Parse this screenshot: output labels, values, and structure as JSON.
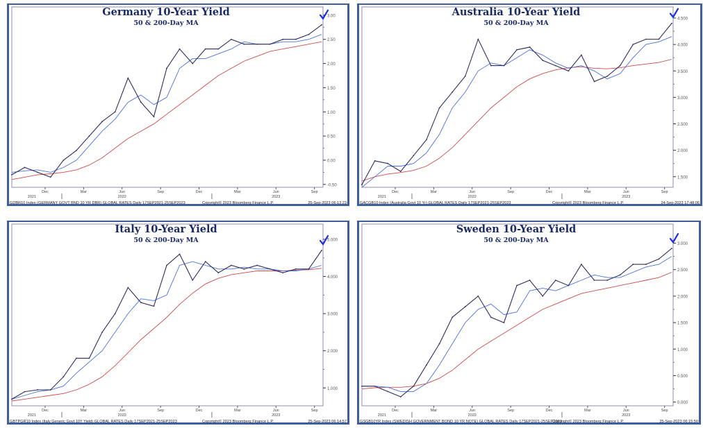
{
  "chart_data": [
    {
      "type": "line",
      "title": "Germany 10-Year Yield",
      "subtitle": "50 & 200-Day MA",
      "footer_left": "GDBR10 Index (GERMANY GOVT BND 10 YR DBR) GLOBAL RATES  Daily 17SEP2021-25SEP2023",
      "footer_mid": "Copyright© 2023 Bloomberg Finance L.P.",
      "footer_right": "25-Sep-2023 06:13:23",
      "ylim": [
        -0.56,
        3.17
      ],
      "yticks": [
        "3.00",
        "2.50",
        "2.00",
        "1.50",
        "1.00",
        "0.50",
        "0.00",
        "-0.50"
      ],
      "ytick_values": [
        3.0,
        2.5,
        2.0,
        1.5,
        1.0,
        0.5,
        0.0,
        -0.5
      ],
      "xticks": [
        "Dec",
        "Mar",
        "Jun",
        "Sep",
        "Dec",
        "Mar",
        "Jun",
        "Sep"
      ],
      "years": [
        "2021",
        "2022",
        "2023"
      ],
      "series": [
        {
          "name": "Yield",
          "color": "#2e2e5e",
          "values": [
            -0.3,
            -0.15,
            -0.25,
            -0.35,
            0.0,
            0.2,
            0.5,
            0.8,
            1.0,
            1.7,
            1.2,
            0.9,
            1.9,
            2.3,
            2.0,
            2.3,
            2.3,
            2.5,
            2.4,
            2.4,
            2.4,
            2.5,
            2.5,
            2.6,
            2.8
          ]
        },
        {
          "name": "50-Day MA",
          "color": "#4a6fe0",
          "values": [
            -0.25,
            -0.22,
            -0.2,
            -0.25,
            -0.15,
            0.0,
            0.3,
            0.6,
            0.85,
            1.2,
            1.35,
            1.15,
            1.3,
            1.9,
            2.1,
            2.1,
            2.2,
            2.3,
            2.45,
            2.4,
            2.4,
            2.45,
            2.45,
            2.5,
            2.6
          ]
        },
        {
          "name": "200-Day MA",
          "color": "#d04a4a",
          "values": [
            -0.4,
            -0.35,
            -0.3,
            -0.28,
            -0.25,
            -0.2,
            -0.1,
            0.05,
            0.25,
            0.45,
            0.6,
            0.75,
            0.95,
            1.15,
            1.35,
            1.55,
            1.75,
            1.9,
            2.05,
            2.15,
            2.25,
            2.3,
            2.35,
            2.4,
            2.45
          ]
        }
      ]
    },
    {
      "type": "line",
      "title": "Australia 10-Year Yield",
      "subtitle": "50 & 200-Day MA",
      "footer_left": "GACGB10 Index (Australia Govt 10 Yr) GLOBAL RATES  Daily 17SEP2021-25SEP2023",
      "footer_mid": "Copyright© 2023 Bloomberg Finance L.P.",
      "footer_right": "24-Sep-2023 17:48:06",
      "ylim": [
        1.3,
        4.71
      ],
      "yticks": [
        "4.500",
        "4.000",
        "3.500",
        "3.000",
        "2.500",
        "2.000",
        "1.500"
      ],
      "ytick_values": [
        4.5,
        4.0,
        3.5,
        3.0,
        2.5,
        2.0,
        1.5
      ],
      "xticks": [
        "Dec",
        "Mar",
        "Jun",
        "Sep",
        "Dec",
        "Mar",
        "Jun",
        "Sep"
      ],
      "years": [
        "2021",
        "2022",
        "2023"
      ],
      "series": [
        {
          "name": "Yield",
          "color": "#2e2e5e",
          "values": [
            1.35,
            1.8,
            1.75,
            1.6,
            1.9,
            2.2,
            2.8,
            3.1,
            3.4,
            4.1,
            3.6,
            3.6,
            3.9,
            3.95,
            3.7,
            3.6,
            3.5,
            3.8,
            3.3,
            3.4,
            3.6,
            4.0,
            4.1,
            4.1,
            4.4
          ]
        },
        {
          "name": "50-Day MA",
          "color": "#4a6fe0",
          "values": [
            1.3,
            1.5,
            1.7,
            1.7,
            1.75,
            1.95,
            2.3,
            2.8,
            3.1,
            3.5,
            3.65,
            3.6,
            3.75,
            3.9,
            3.8,
            3.65,
            3.55,
            3.6,
            3.5,
            3.35,
            3.45,
            3.75,
            4.0,
            4.05,
            4.15
          ]
        },
        {
          "name": "200-Day MA",
          "color": "#d04a4a",
          "values": [
            1.42,
            1.5,
            1.55,
            1.58,
            1.62,
            1.7,
            1.85,
            2.05,
            2.3,
            2.55,
            2.8,
            3.0,
            3.2,
            3.35,
            3.45,
            3.52,
            3.56,
            3.58,
            3.55,
            3.54,
            3.56,
            3.6,
            3.63,
            3.66,
            3.72
          ]
        }
      ]
    },
    {
      "type": "line",
      "title": "Italy 10-Year Yield",
      "subtitle": "50 & 200-Day MA",
      "footer_left": "GBTPGR10 Index (Italy Generic Govt 10Y Yield) GLOBAL RATES  Daily 17SEP2021-25SEP2023",
      "footer_mid": "Copyright© 2023 Bloomberg Finance L.P.",
      "footer_right": "25-Sep-2023 06:14:57",
      "ylim": [
        0.52,
        5.41
      ],
      "yticks": [
        "5.000",
        "4.000",
        "3.000",
        "2.000",
        "1.000"
      ],
      "ytick_values": [
        5,
        4,
        3,
        2,
        1
      ],
      "xticks": [
        "Dec",
        "Mar",
        "Jun",
        "Sep",
        "Dec",
        "Mar",
        "Jun",
        "Sep"
      ],
      "years": [
        "2021",
        "2022",
        "2023"
      ],
      "series": [
        {
          "name": "Yield",
          "color": "#2e2e5e",
          "values": [
            0.7,
            0.9,
            0.95,
            0.95,
            1.3,
            1.8,
            1.8,
            2.5,
            3.0,
            3.7,
            3.3,
            3.2,
            4.3,
            4.6,
            3.9,
            4.4,
            4.1,
            4.3,
            4.2,
            4.3,
            4.2,
            4.1,
            4.2,
            4.2,
            4.7
          ]
        },
        {
          "name": "50-Day MA",
          "color": "#4a6fe0",
          "values": [
            0.7,
            0.8,
            0.9,
            0.95,
            1.05,
            1.4,
            1.7,
            2.0,
            2.5,
            3.0,
            3.4,
            3.35,
            3.5,
            4.3,
            4.4,
            4.3,
            4.2,
            4.2,
            4.25,
            4.2,
            4.2,
            4.15,
            4.15,
            4.2,
            4.3
          ]
        },
        {
          "name": "200-Day MA",
          "color": "#d04a4a",
          "values": [
            0.65,
            0.7,
            0.75,
            0.8,
            0.85,
            0.95,
            1.1,
            1.3,
            1.6,
            1.95,
            2.3,
            2.6,
            2.9,
            3.25,
            3.55,
            3.8,
            3.95,
            4.05,
            4.1,
            4.15,
            4.15,
            4.15,
            4.17,
            4.18,
            4.22
          ]
        }
      ]
    },
    {
      "type": "line",
      "title": "Sweden 10-Year Yield",
      "subtitle": "50 & 200-Day MA",
      "footer_left": "GSGB10YR Index (SWEDISH GOVERNMENT BOND 10 YR NOTE) GLOBAL RATES  Daily 17SEP2021-25SEP2023",
      "footer_mid": "Copyright© 2023 Bloomberg Finance L.P.",
      "footer_right": "25-Sep-2023 06:15:50",
      "ylim": [
        -0.07,
        3.36
      ],
      "yticks": [
        "3.000",
        "2.500",
        "2.000",
        "1.500",
        "1.000",
        "0.500",
        "0.000"
      ],
      "ytick_values": [
        3.0,
        2.5,
        2.0,
        1.5,
        1.0,
        0.5,
        0.0
      ],
      "xticks": [
        "Dec",
        "Mar",
        "Jun",
        "Sep",
        "Dec",
        "Mar",
        "Jun",
        "Sep"
      ],
      "years": [
        "2021",
        "2022",
        "2023"
      ],
      "series": [
        {
          "name": "Yield",
          "color": "#2e2e5e",
          "values": [
            0.3,
            0.3,
            0.2,
            0.1,
            0.3,
            0.7,
            1.1,
            1.6,
            1.8,
            2.0,
            1.6,
            1.5,
            2.2,
            2.3,
            2.0,
            2.3,
            2.2,
            2.6,
            2.3,
            2.3,
            2.4,
            2.6,
            2.6,
            2.7,
            2.9
          ]
        },
        {
          "name": "50-Day MA",
          "color": "#4a6fe0",
          "values": [
            0.3,
            0.3,
            0.28,
            0.2,
            0.2,
            0.35,
            0.7,
            1.1,
            1.5,
            1.75,
            1.85,
            1.65,
            1.7,
            2.1,
            2.15,
            2.1,
            2.2,
            2.3,
            2.4,
            2.35,
            2.35,
            2.45,
            2.55,
            2.6,
            2.75
          ]
        },
        {
          "name": "200-Day MA",
          "color": "#d04a4a",
          "values": [
            0.25,
            0.27,
            0.28,
            0.28,
            0.3,
            0.35,
            0.45,
            0.6,
            0.8,
            1.0,
            1.15,
            1.3,
            1.45,
            1.6,
            1.75,
            1.85,
            1.95,
            2.05,
            2.1,
            2.15,
            2.2,
            2.25,
            2.3,
            2.35,
            2.45
          ]
        }
      ]
    }
  ]
}
